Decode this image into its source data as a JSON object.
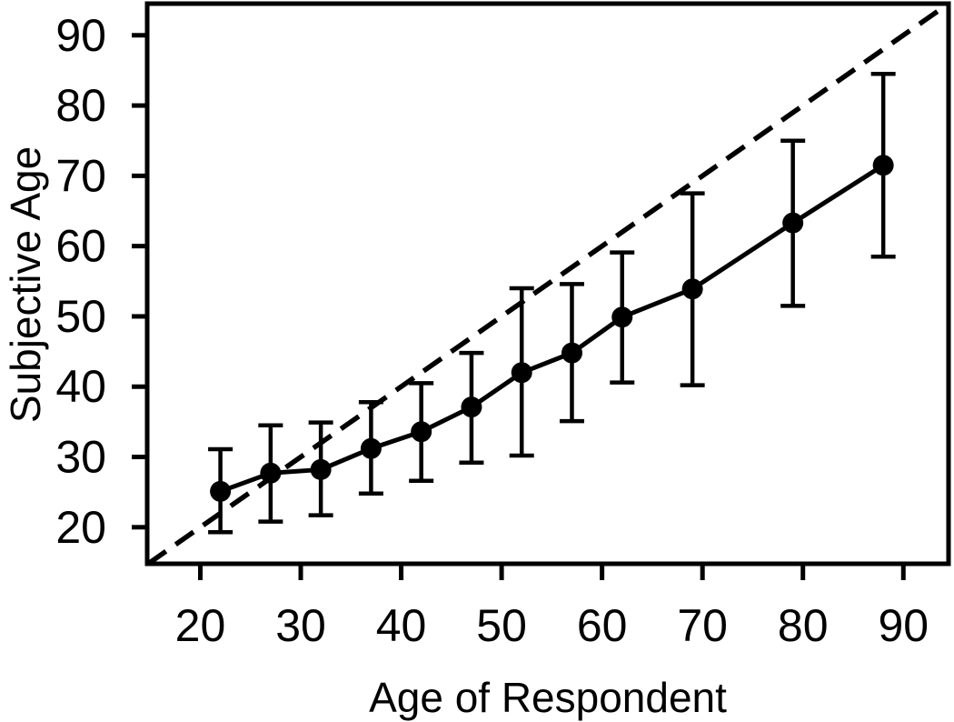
{
  "figure": {
    "background": "#ffffff",
    "foreground": "#000000"
  },
  "chart_data": {
    "type": "scatter",
    "subtype": "means-with-error-bars-and-identity-line",
    "title": "",
    "xlabel": "Age of Respondent",
    "ylabel": "Subjective Age",
    "xlim": [
      14.8,
      94.5
    ],
    "ylim": [
      14.8,
      94.5
    ],
    "x_ticks": [
      20,
      30,
      40,
      50,
      60,
      70,
      80,
      90
    ],
    "y_ticks": [
      20,
      30,
      40,
      50,
      60,
      70,
      80,
      90
    ],
    "grid": false,
    "legend_position": "none",
    "series": [
      {
        "name": "mean-subjective-age",
        "type": "line-points-errorbars",
        "marker": "filled-circle",
        "color": "#000000",
        "x": [
          22,
          27,
          32,
          37,
          42,
          47,
          52,
          57,
          62,
          69,
          79,
          88
        ],
        "y": [
          25.1,
          27.7,
          28.2,
          31.2,
          33.6,
          37.1,
          42.0,
          44.8,
          49.9,
          53.9,
          63.3,
          71.5
        ],
        "y_lower": [
          19.3,
          20.8,
          21.7,
          24.8,
          26.6,
          29.2,
          30.2,
          35.1,
          40.6,
          40.2,
          51.5,
          58.5
        ],
        "y_upper": [
          31.1,
          34.5,
          34.9,
          37.8,
          40.5,
          44.8,
          54.0,
          54.6,
          59.1,
          67.5,
          75.0,
          84.5
        ]
      },
      {
        "name": "identity-line",
        "type": "dashed-line",
        "color": "#000000",
        "x": [
          14.8,
          94.5
        ],
        "y": [
          14.8,
          94.5
        ]
      }
    ]
  }
}
